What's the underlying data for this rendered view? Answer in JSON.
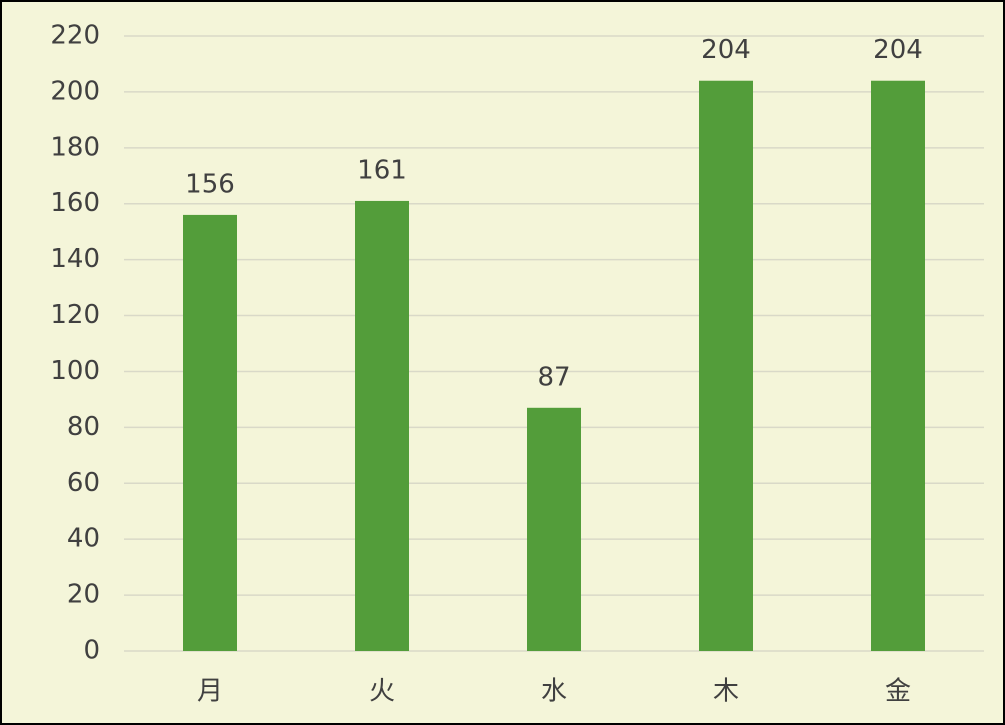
{
  "chart_data": {
    "type": "bar",
    "categories": [
      "月",
      "火",
      "水",
      "木",
      "金"
    ],
    "values": [
      156,
      161,
      87,
      204,
      204
    ],
    "color": "#539d3a",
    "ylim": [
      0,
      220
    ],
    "yticks": [
      0,
      20,
      40,
      60,
      80,
      100,
      120,
      140,
      160,
      180,
      200,
      220
    ],
    "grid": true,
    "data_labels": true
  }
}
